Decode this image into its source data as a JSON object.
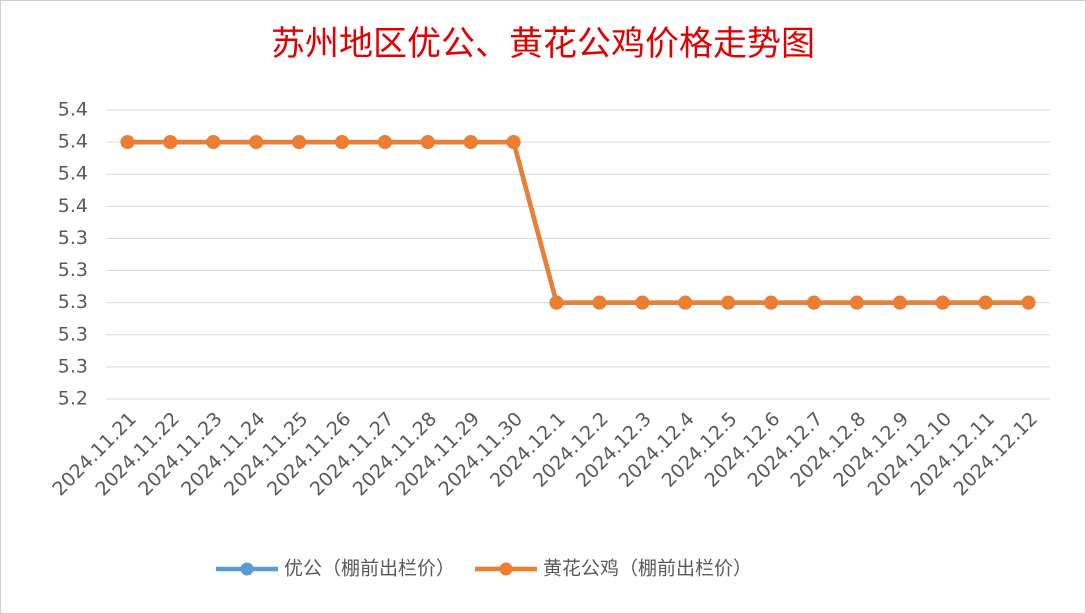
{
  "chart_data": {
    "type": "line",
    "title": "苏州地区优公、黄花公鸡价格走势图",
    "categories": [
      "2024.11.21",
      "2024.11.22",
      "2024.11.23",
      "2024.11.24",
      "2024.11.25",
      "2024.11.26",
      "2024.11.27",
      "2024.11.28",
      "2024.11.29",
      "2024.11.30",
      "2024.12.1",
      "2024.12.2",
      "2024.12.3",
      "2024.12.4",
      "2024.12.5",
      "2024.12.6",
      "2024.12.7",
      "2024.12.8",
      "2024.12.9",
      "2024.12.10",
      "2024.12.11",
      "2024.12.12"
    ],
    "series": [
      {
        "name": "优公（棚前出栏价）",
        "color": "#5b9bd5",
        "values": [
          5.4,
          5.4,
          5.4,
          5.4,
          5.4,
          5.4,
          5.4,
          5.4,
          5.4,
          5.4,
          5.3,
          5.3,
          5.3,
          5.3,
          5.3,
          5.3,
          5.3,
          5.3,
          5.3,
          5.3,
          5.3,
          5.3
        ]
      },
      {
        "name": "黄花公鸡（棚前出栏价）",
        "color": "#ed7d31",
        "values": [
          5.4,
          5.4,
          5.4,
          5.4,
          5.4,
          5.4,
          5.4,
          5.4,
          5.4,
          5.4,
          5.3,
          5.3,
          5.3,
          5.3,
          5.3,
          5.3,
          5.3,
          5.3,
          5.3,
          5.3,
          5.3,
          5.3
        ]
      }
    ],
    "ylim": [
      5.24,
      5.42
    ],
    "yticks": [
      {
        "value": 5.24,
        "label": "5.2"
      },
      {
        "value": 5.26,
        "label": "5.3"
      },
      {
        "value": 5.28,
        "label": "5.3"
      },
      {
        "value": 5.3,
        "label": "5.3"
      },
      {
        "value": 5.32,
        "label": "5.3"
      },
      {
        "value": 5.34,
        "label": "5.3"
      },
      {
        "value": 5.36,
        "label": "5.4"
      },
      {
        "value": 5.38,
        "label": "5.4"
      },
      {
        "value": 5.4,
        "label": "5.4"
      },
      {
        "value": 5.42,
        "label": "5.4"
      }
    ],
    "grid": true,
    "legend": "bottom"
  }
}
